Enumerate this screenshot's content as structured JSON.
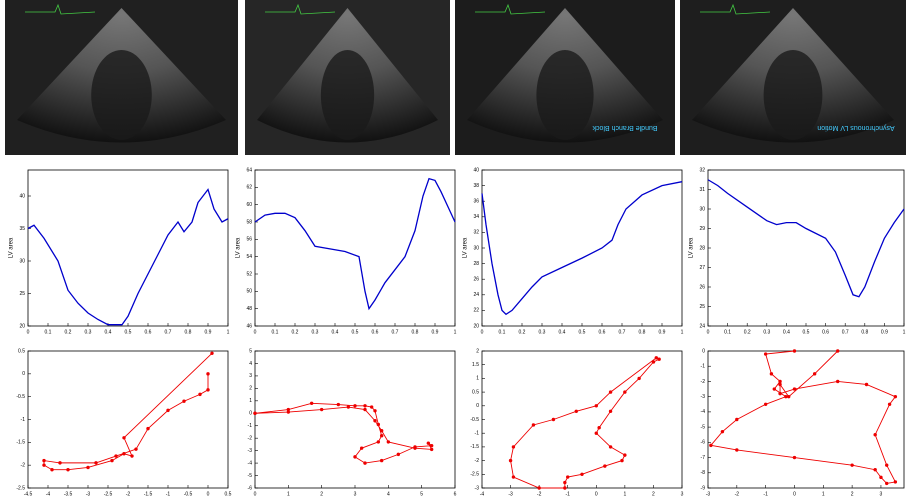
{
  "images": [
    {
      "caption": null,
      "color": "#202020"
    },
    {
      "caption": null,
      "color": "#262626"
    },
    {
      "caption": "Bundle Branch Block",
      "color": "#1c1c1c"
    },
    {
      "caption": "Asynchronous LV Motion",
      "color": "#1e1e1e"
    }
  ],
  "chart_data": [
    {
      "type": "line",
      "ylabel": "LV area",
      "color": "#0000cc",
      "x": [
        0,
        0.03,
        0.08,
        0.15,
        0.2,
        0.25,
        0.3,
        0.35,
        0.4,
        0.47,
        0.5,
        0.55,
        0.6,
        0.65,
        0.7,
        0.75,
        0.78,
        0.82,
        0.85,
        0.9,
        0.93,
        0.97,
        1
      ],
      "values": [
        35,
        35.5,
        33.5,
        30,
        25.5,
        23.5,
        22,
        21,
        20.2,
        20.2,
        21.5,
        25,
        28,
        31,
        34,
        36,
        34.5,
        36,
        39,
        41,
        38,
        36,
        36.5
      ],
      "xlim": [
        0,
        1
      ],
      "xticks": [
        0,
        0.1,
        0.2,
        0.3,
        0.4,
        0.5,
        0.6,
        0.7,
        0.8,
        0.9,
        1
      ],
      "ylim": [
        20,
        44
      ],
      "yticks": [
        20,
        25,
        30,
        35,
        40
      ]
    },
    {
      "type": "line",
      "ylabel": "LV area",
      "color": "#0000cc",
      "x": [
        0,
        0.05,
        0.1,
        0.15,
        0.2,
        0.25,
        0.3,
        0.4,
        0.45,
        0.52,
        0.55,
        0.57,
        0.6,
        0.65,
        0.7,
        0.75,
        0.8,
        0.84,
        0.87,
        0.9,
        0.93,
        0.97,
        1
      ],
      "values": [
        58,
        58.8,
        59,
        59,
        58.5,
        57,
        55.2,
        54.8,
        54.6,
        54,
        50,
        48,
        49,
        51,
        52.5,
        54,
        57,
        61,
        63,
        62.8,
        61.5,
        59.5,
        58
      ],
      "xlim": [
        0,
        1
      ],
      "xticks": [
        0,
        0.1,
        0.2,
        0.3,
        0.4,
        0.5,
        0.6,
        0.7,
        0.8,
        0.9,
        1
      ],
      "ylim": [
        46,
        64
      ],
      "yticks": [
        46,
        48,
        50,
        52,
        54,
        56,
        58,
        60,
        62,
        64
      ]
    },
    {
      "type": "line",
      "ylabel": "LV area",
      "color": "#0000cc",
      "x": [
        0,
        0.02,
        0.05,
        0.08,
        0.1,
        0.12,
        0.15,
        0.2,
        0.25,
        0.3,
        0.4,
        0.5,
        0.6,
        0.65,
        0.68,
        0.72,
        0.8,
        0.9,
        1
      ],
      "values": [
        37,
        33,
        28,
        24,
        22,
        21.5,
        22,
        23.5,
        25,
        26.3,
        27.5,
        28.7,
        30,
        31,
        33,
        35,
        36.8,
        38,
        38.5
      ],
      "xlim": [
        0,
        1
      ],
      "xticks": [
        0,
        0.1,
        0.2,
        0.3,
        0.4,
        0.5,
        0.6,
        0.7,
        0.8,
        0.9,
        1
      ],
      "ylim": [
        20,
        40
      ],
      "yticks": [
        20,
        22,
        24,
        26,
        28,
        30,
        32,
        34,
        36,
        38,
        40
      ]
    },
    {
      "type": "line",
      "ylabel": "LV area",
      "color": "#0000cc",
      "x": [
        0,
        0.05,
        0.1,
        0.2,
        0.3,
        0.35,
        0.4,
        0.45,
        0.5,
        0.6,
        0.65,
        0.7,
        0.74,
        0.77,
        0.8,
        0.85,
        0.9,
        0.95,
        1
      ],
      "values": [
        31.5,
        31.2,
        30.8,
        30.1,
        29.4,
        29.2,
        29.3,
        29.3,
        29,
        28.5,
        27.8,
        26.6,
        25.6,
        25.5,
        26,
        27.3,
        28.5,
        29.3,
        30
      ],
      "xlim": [
        0,
        1
      ],
      "xticks": [
        0,
        0.1,
        0.2,
        0.3,
        0.4,
        0.5,
        0.6,
        0.7,
        0.8,
        0.9,
        1
      ],
      "ylim": [
        24,
        32
      ],
      "yticks": [
        24,
        25,
        26,
        27,
        28,
        29,
        30,
        31,
        32
      ]
    },
    {
      "type": "scatter",
      "color": "#ee0000",
      "x": [
        0.1,
        -2.1,
        -1.9,
        -2.1,
        -2.4,
        -3,
        -3.5,
        -3.9,
        -4.1,
        -4.1,
        -3.7,
        -2.8,
        -2.3,
        -1.8,
        -1.5,
        -1,
        -0.6,
        -0.2,
        0,
        0
      ],
      "y": [
        0.45,
        -1.4,
        -1.8,
        -1.75,
        -1.9,
        -2.05,
        -2.1,
        -2.1,
        -2,
        -1.9,
        -1.95,
        -1.95,
        -1.8,
        -1.65,
        -1.2,
        -0.8,
        -0.6,
        -0.45,
        -0.35,
        0
      ],
      "xlim": [
        -4.5,
        0.5
      ],
      "xticks": [
        -4.5,
        -4,
        -3.5,
        -3,
        -2.5,
        -2,
        -1.5,
        -1,
        -0.5,
        0,
        0.5
      ],
      "ylim": [
        -2.5,
        0.5
      ],
      "yticks": [
        -2.5,
        -2,
        -1.5,
        -1,
        -0.5,
        0,
        0.5
      ]
    },
    {
      "type": "scatter",
      "color": "#ee0000",
      "x": [
        0,
        1,
        1.7,
        2.5,
        3,
        3.3,
        3.5,
        3.6,
        3.7,
        3.8,
        3.7,
        3.2,
        3,
        3.3,
        3.8,
        4.3,
        4.8,
        5.3,
        5.2,
        5.3,
        4.8,
        4,
        3.8,
        3.6,
        3.3,
        2.8,
        2,
        1,
        0
      ],
      "y": [
        0,
        0.3,
        0.8,
        0.7,
        0.6,
        0.6,
        0.5,
        0.2,
        -0.9,
        -1.8,
        -2.3,
        -2.8,
        -3.5,
        -4,
        -3.8,
        -3.3,
        -2.7,
        -2.6,
        -2.4,
        -2.9,
        -2.8,
        -2.3,
        -1.4,
        -0.6,
        0.3,
        0.5,
        0.3,
        0.1,
        0
      ],
      "xlim": [
        0,
        6
      ],
      "xticks": [
        0,
        1,
        2,
        3,
        4,
        5,
        6
      ],
      "ylim": [
        -6,
        5
      ],
      "yticks": [
        -6,
        -5,
        -4,
        -3,
        -2,
        -1,
        0,
        1,
        2,
        3,
        4,
        5
      ]
    },
    {
      "type": "scatter",
      "color": "#ee0000",
      "x": [
        2.2,
        2,
        1.5,
        1,
        0.5,
        0.1,
        0,
        0.5,
        1,
        0.9,
        0.3,
        -0.5,
        -1,
        -1.1,
        -1.1,
        -2,
        -2.9,
        -3,
        -2.9,
        -2.2,
        -1.5,
        -0.7,
        0,
        0.5,
        2.1
      ],
      "y": [
        1.7,
        1.6,
        1,
        0.5,
        -0.2,
        -0.8,
        -1,
        -1.5,
        -1.8,
        -2,
        -2.2,
        -2.5,
        -2.6,
        -2.8,
        -3,
        -3,
        -2.6,
        -2,
        -1.5,
        -0.7,
        -0.5,
        -0.2,
        0,
        0.5,
        1.75
      ],
      "xlim": [
        -4,
        3
      ],
      "xticks": [
        -4,
        -3,
        -2,
        -1,
        0,
        1,
        2,
        3
      ],
      "ylim": [
        -3,
        2
      ],
      "yticks": [
        -3,
        -2.5,
        -2,
        -1.5,
        -1,
        -0.5,
        0,
        0.5,
        1,
        1.5,
        2
      ]
    },
    {
      "type": "scatter",
      "color": "#ee0000",
      "x": [
        0,
        -1,
        -0.8,
        -0.5,
        -0.7,
        -0.3,
        -1,
        -2,
        -2.5,
        -2.9,
        -2,
        0,
        2,
        2.8,
        3,
        3.2,
        3.5,
        3.2,
        2.8,
        3.3,
        3.5,
        2.5,
        1.5,
        0,
        -0.5,
        -0.5,
        -0.2,
        0.7,
        1.5
      ],
      "y": [
        0,
        -0.2,
        -1.5,
        -2,
        -2.5,
        -3,
        -3.5,
        -4.5,
        -5.3,
        -6.2,
        -6.5,
        -7,
        -7.5,
        -7.8,
        -8.3,
        -8.7,
        -8.6,
        -7.5,
        -5.5,
        -3.5,
        -3,
        -2.2,
        -2,
        -2.5,
        -2.8,
        -2.2,
        -3,
        -1.5,
        0
      ],
      "xlim": [
        -3,
        3.8
      ],
      "xticks": [
        -3,
        -2,
        -1,
        0,
        1,
        2,
        3
      ],
      "ylim": [
        -9,
        0
      ],
      "yticks": [
        -9,
        -8,
        -7,
        -6,
        -5,
        -4,
        -3,
        -2,
        -1,
        0
      ]
    }
  ]
}
